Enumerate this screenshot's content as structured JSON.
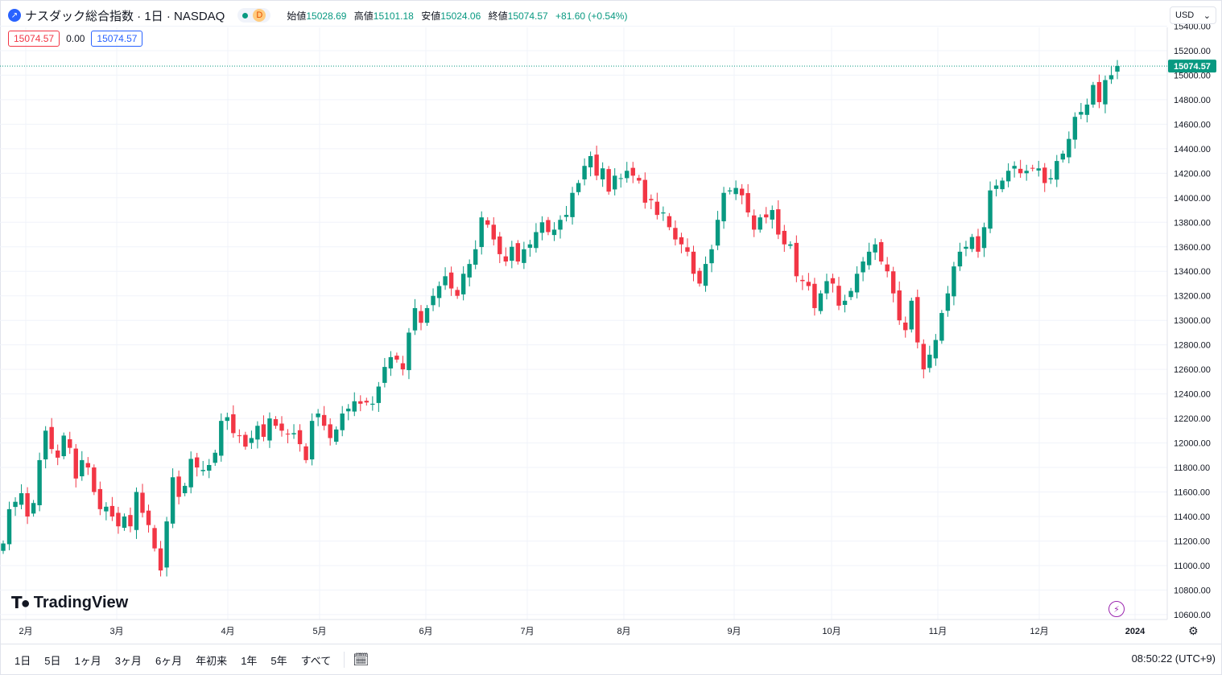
{
  "header": {
    "title": "ナスダック総合指数 · 1日 · NASDAQ",
    "interval_badge": "D",
    "ohlc": {
      "open_label": "始値",
      "open": "15028.69",
      "high_label": "高値",
      "high": "15101.18",
      "low_label": "安値",
      "low": "15024.06",
      "close_label": "終値",
      "close": "15074.57",
      "change": "+81.60 (+0.54%)"
    },
    "sell_price": "15074.57",
    "spread": "0.00",
    "buy_price": "15074.57",
    "currency": "USD"
  },
  "toolbar": {
    "ranges": [
      "1日",
      "5日",
      "1ヶ月",
      "3ヶ月",
      "6ヶ月",
      "年初来",
      "1年",
      "5年",
      "すべて"
    ],
    "clock": "08:50:22 (UTC+9)"
  },
  "branding": {
    "logo_text": "TradingView"
  },
  "colors": {
    "up": "#089981",
    "down": "#f23645",
    "grid": "#f0f3fa",
    "accent": "#2962ff"
  },
  "chart_data": {
    "type": "candlestick",
    "ylim": [
      10560,
      15390
    ],
    "price_ticks": [
      "10600.00",
      "10800.00",
      "11000.00",
      "11200.00",
      "11400.00",
      "11600.00",
      "11800.00",
      "12000.00",
      "12200.00",
      "12400.00",
      "12600.00",
      "12800.00",
      "13000.00",
      "13200.00",
      "13400.00",
      "13600.00",
      "13800.00",
      "14000.00",
      "14200.00",
      "14400.00",
      "14600.00",
      "14800.00",
      "15000.00",
      "15200.00",
      "15400.00"
    ],
    "last_price_label": "15074.57",
    "last_price": 15074.57,
    "months": [
      "2月",
      "3月",
      "4月",
      "5月",
      "6月",
      "7月",
      "8月",
      "9月",
      "10月",
      "11月",
      "12月",
      "2024"
    ],
    "closes": [
      11180,
      11460,
      11520,
      11590,
      11400,
      11510,
      11860,
      12100,
      11950,
      11880,
      12060,
      11960,
      11710,
      11860,
      11800,
      11600,
      11460,
      11480,
      11400,
      11320,
      11400,
      11320,
      11600,
      11430,
      11330,
      11140,
      10960,
      11360,
      11720,
      11560,
      11650,
      11870,
      11800,
      11780,
      11820,
      11920,
      12180,
      12210,
      12080,
      12060,
      11970,
      12040,
      12140,
      12050,
      12200,
      12140,
      12100,
      12070,
      12080,
      11990,
      11860,
      12180,
      12240,
      12140,
      12040,
      12110,
      12240,
      12280,
      12340,
      12320,
      12330,
      12320,
      12460,
      12620,
      12700,
      12680,
      12600,
      12900,
      13100,
      12980,
      13100,
      13200,
      13280,
      13360,
      13260,
      13200,
      13380,
      13460,
      13580,
      13840,
      13780,
      13660,
      13540,
      13480,
      13600,
      13480,
      13580,
      13620,
      13720,
      13800,
      13720,
      13740,
      13820,
      13860,
      14040,
      14120,
      14260,
      14340,
      14180,
      14240,
      14050,
      14180,
      14160,
      14220,
      14180,
      14140,
      13960,
      13980,
      13860,
      13880,
      13760,
      13660,
      13620,
      13560,
      13380,
      13300,
      13460,
      13580,
      13820,
      14040,
      14060,
      14080,
      14020,
      13880,
      13740,
      13840,
      13840,
      13900,
      13700,
      13620,
      13620,
      13360,
      13320,
      13280,
      13100,
      13220,
      13320,
      13300,
      13120,
      13160,
      13240,
      13380,
      13480,
      13560,
      13620,
      13480,
      13400,
      13220,
      13000,
      12920,
      13160,
      12820,
      12600,
      12720,
      12840,
      13060,
      13220,
      13440,
      13560,
      13600,
      13680,
      13560,
      13760,
      14060,
      14100,
      14140,
      14220,
      14260,
      14200,
      14220,
      14240,
      14240,
      14120,
      14160,
      14300,
      14360,
      14480,
      14660,
      14700,
      14760,
      14920,
      14780,
      14960,
      15000,
      15074.57
    ]
  }
}
